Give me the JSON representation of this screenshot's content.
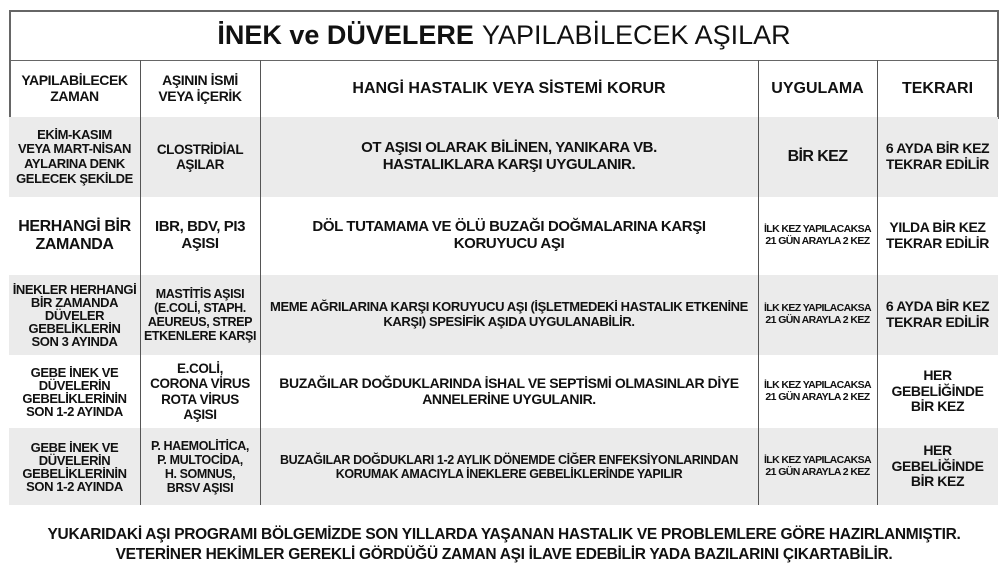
{
  "title": {
    "bold": "İNEK ve DÜVELERE",
    "regular": "YAPILABİLECEK AŞILAR"
  },
  "headers": [
    "YAPILABİLECEK\nZAMAN",
    "AŞININ İSMİ\nVEYA İÇERİK",
    "HANGİ HASTALIK VEYA SİSTEMİ KORUR",
    "UYGULAMA",
    "TEKRARI"
  ],
  "rows": [
    {
      "zaman": "EKİM-KASIM\nVEYA MART-NİSAN\nAYLARINA DENK\nGELECEK ŞEKİLDE",
      "asi": "CLOSTRİDİAL\nAŞILAR",
      "korur": "OT AŞISI OLARAK BİLİNEN, YANIKARA VB.\nHASTALIKLARA KARŞI UYGULANIR.",
      "uygulama": "BİR KEZ",
      "tekrar": "6 AYDA BİR KEZ\nTEKRAR EDİLİR"
    },
    {
      "zaman": "HERHANGİ BİR\nZAMANDA",
      "asi": "IBR, BDV, PI3\nAŞISI",
      "korur": "DÖL TUTAMAMA VE ÖLÜ BUZAĞI DOĞMALARINA KARŞI\nKORUYUCU AŞI",
      "uygulama": "İLK KEZ YAPILACAKSA\n21 GÜN ARAYLA 2 KEZ",
      "tekrar": "YILDA BİR KEZ\nTEKRAR EDİLİR"
    },
    {
      "zaman": "İNEKLER HERHANGİ\nBİR ZAMANDA\nDÜVELER\nGEBELİKLERİN\nSON 3 AYINDA",
      "asi": "MASTİTİS AŞISI\n(E.COLİ, STAPH.\nAEUREUS, STREP\nETKENLERE KARŞI",
      "korur": "MEME AĞRILARINA KARŞI KORUYUCU AŞI (İŞLETMEDEKİ HASTALIK ETKENİNE\nKARŞI) SPESİFİK AŞIDA UYGULANABİLİR.",
      "uygulama": "İLK KEZ YAPILACAKSA\n21 GÜN ARAYLA 2 KEZ",
      "tekrar": "6 AYDA BİR KEZ\nTEKRAR EDİLİR"
    },
    {
      "zaman": "GEBE İNEK VE\nDÜVELERİN\nGEBELİKLERİNİN\nSON 1-2 AYINDA",
      "asi": "E.COLİ,\nCORONA  VİRUS\nROTA VİRUS\nAŞISI",
      "korur": "BUZAĞILAR DOĞDUKLARINDA İSHAL VE SEPTİSMİ OLMASINLAR DİYE\nANNELERİNE UYGULANIR.",
      "uygulama": "İLK KEZ YAPILACAKSA\n21 GÜN ARAYLA 2 KEZ",
      "tekrar": "HER GEBELİĞİNDE\nBİR KEZ"
    },
    {
      "zaman": "GEBE İNEK VE\nDÜVELERİN\nGEBELİKLERİNİN\nSON 1-2 AYINDA",
      "asi": "P. HAEMOLİTİCA,\nP. MULTOCİDA,\nH. SOMNUS,\nBRSV AŞISI",
      "korur": "BUZAĞILAR DOĞDUKLARI 1-2 AYLIK DÖNEMDE CİĞER ENFEKSİYONLARINDAN\nKORUMAK AMACIYLA İNEKLERE GEBELİKLERİNDE YAPILIR",
      "uygulama": "İLK KEZ YAPILACAKSA\n21 GÜN ARAYLA 2 KEZ",
      "tekrar": "HER GEBELİĞİNDE\nBİR KEZ"
    }
  ],
  "footer": [
    "YUKARIDAKİ AŞI PROGRAMI BÖLGEMİZDE SON YILLARDA YAŞANAN HASTALIK VE PROBLEMLERE GÖRE HAZIRLANMIŞTIR.",
    "VETERİNER HEKİMLER GEREKLİ GÖRDÜĞÜ ZAMAN AŞI İLAVE EDEBİLİR YADA BAZILARINI ÇIKARTABİLİR."
  ],
  "colors": {
    "row_alt": "#ebebeb",
    "border": "#666666"
  }
}
